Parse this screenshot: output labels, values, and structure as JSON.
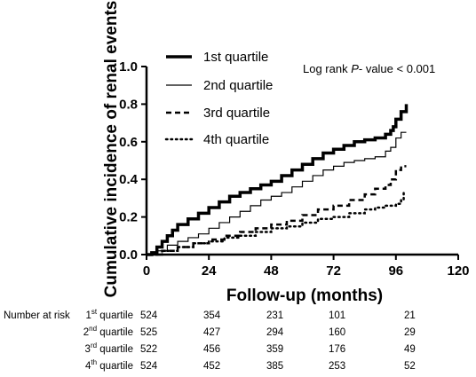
{
  "chart_data": {
    "type": "line",
    "title": "",
    "xlabel": "Follow-up (months)",
    "ylabel": "Cumulative incidence of renal events",
    "xlim": [
      0,
      120
    ],
    "ylim": [
      0,
      1.0
    ],
    "x_ticks": [
      0,
      24,
      48,
      72,
      96,
      120
    ],
    "y_ticks": [
      0.0,
      0.2,
      0.4,
      0.6,
      0.8,
      1.0
    ],
    "x_tick_labels": [
      "0",
      "24",
      "48",
      "72",
      "96",
      "120"
    ],
    "y_tick_labels": [
      "0.0",
      "0.2",
      "0.4",
      "0.6",
      "0.8",
      "1.0"
    ],
    "grid": false,
    "legend_position": "top-left",
    "annotation": {
      "prefix": "Log rank ",
      "italic": "P",
      "suffix": "- value < 0.001"
    },
    "series": [
      {
        "name": "1st quartile",
        "style": "thick-solid",
        "points": [
          [
            0,
            0
          ],
          [
            2,
            0.01
          ],
          [
            4,
            0.04
          ],
          [
            6,
            0.07
          ],
          [
            8,
            0.1
          ],
          [
            10,
            0.13
          ],
          [
            12,
            0.16
          ],
          [
            16,
            0.19
          ],
          [
            20,
            0.22
          ],
          [
            24,
            0.25
          ],
          [
            28,
            0.28
          ],
          [
            32,
            0.31
          ],
          [
            36,
            0.33
          ],
          [
            40,
            0.35
          ],
          [
            44,
            0.37
          ],
          [
            48,
            0.39
          ],
          [
            52,
            0.42
          ],
          [
            56,
            0.45
          ],
          [
            60,
            0.48
          ],
          [
            64,
            0.51
          ],
          [
            68,
            0.54
          ],
          [
            72,
            0.56
          ],
          [
            76,
            0.58
          ],
          [
            80,
            0.6
          ],
          [
            84,
            0.61
          ],
          [
            88,
            0.62
          ],
          [
            92,
            0.64
          ],
          [
            94,
            0.66
          ],
          [
            95,
            0.68
          ],
          [
            96,
            0.72
          ],
          [
            98,
            0.76
          ],
          [
            100,
            0.8
          ]
        ]
      },
      {
        "name": "2nd quartile",
        "style": "thin-solid",
        "points": [
          [
            0,
            0
          ],
          [
            4,
            0.02
          ],
          [
            8,
            0.05
          ],
          [
            12,
            0.07
          ],
          [
            16,
            0.09
          ],
          [
            20,
            0.11
          ],
          [
            24,
            0.14
          ],
          [
            28,
            0.17
          ],
          [
            32,
            0.2
          ],
          [
            36,
            0.23
          ],
          [
            40,
            0.26
          ],
          [
            44,
            0.29
          ],
          [
            48,
            0.31
          ],
          [
            52,
            0.33
          ],
          [
            56,
            0.36
          ],
          [
            60,
            0.39
          ],
          [
            64,
            0.42
          ],
          [
            68,
            0.45
          ],
          [
            72,
            0.47
          ],
          [
            76,
            0.49
          ],
          [
            80,
            0.5
          ],
          [
            84,
            0.51
          ],
          [
            88,
            0.52
          ],
          [
            92,
            0.55
          ],
          [
            94,
            0.57
          ],
          [
            96,
            0.62
          ],
          [
            98,
            0.65
          ],
          [
            100,
            0.65
          ]
        ]
      },
      {
        "name": "3rd quartile",
        "style": "dashed",
        "points": [
          [
            0,
            0
          ],
          [
            6,
            0.02
          ],
          [
            12,
            0.04
          ],
          [
            18,
            0.06
          ],
          [
            24,
            0.08
          ],
          [
            30,
            0.1
          ],
          [
            36,
            0.12
          ],
          [
            42,
            0.14
          ],
          [
            48,
            0.16
          ],
          [
            54,
            0.18
          ],
          [
            60,
            0.21
          ],
          [
            66,
            0.24
          ],
          [
            72,
            0.26
          ],
          [
            78,
            0.29
          ],
          [
            84,
            0.32
          ],
          [
            88,
            0.35
          ],
          [
            92,
            0.37
          ],
          [
            94,
            0.4
          ],
          [
            96,
            0.45
          ],
          [
            98,
            0.47
          ],
          [
            100,
            0.47
          ]
        ]
      },
      {
        "name": "4th quartile",
        "style": "dotted",
        "points": [
          [
            0,
            0
          ],
          [
            6,
            0.02
          ],
          [
            12,
            0.04
          ],
          [
            18,
            0.06
          ],
          [
            24,
            0.07
          ],
          [
            30,
            0.09
          ],
          [
            36,
            0.1
          ],
          [
            42,
            0.12
          ],
          [
            48,
            0.14
          ],
          [
            54,
            0.15
          ],
          [
            60,
            0.17
          ],
          [
            66,
            0.19
          ],
          [
            72,
            0.2
          ],
          [
            78,
            0.22
          ],
          [
            84,
            0.24
          ],
          [
            88,
            0.25
          ],
          [
            92,
            0.26
          ],
          [
            96,
            0.27
          ],
          [
            98,
            0.29
          ],
          [
            99,
            0.34
          ]
        ]
      }
    ]
  },
  "risk_table": {
    "title": "Number at risk",
    "rows": [
      {
        "ord": "1",
        "sup": "st",
        "label": "quartile",
        "values": [
          "524",
          "354",
          "231",
          "101",
          "21"
        ]
      },
      {
        "ord": "2",
        "sup": "nd",
        "label": "quartile",
        "values": [
          "525",
          "427",
          "294",
          "160",
          "29"
        ]
      },
      {
        "ord": "3",
        "sup": "rd",
        "label": "quartile",
        "values": [
          "522",
          "456",
          "359",
          "176",
          "49"
        ]
      },
      {
        "ord": "4",
        "sup": "th",
        "label": "quartile",
        "values": [
          "524",
          "452",
          "385",
          "253",
          "52"
        ]
      }
    ]
  }
}
